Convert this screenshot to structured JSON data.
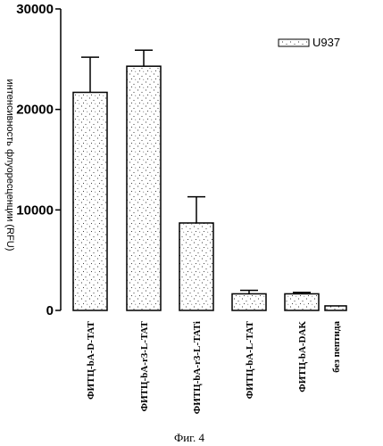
{
  "chart_data": {
    "type": "bar",
    "categories": [
      "ФИТЦ-bA-D-TAT",
      "ФИТЦ-bA-r3-L-TAT",
      "ФИТЦ-bA-r3-L-TATi",
      "ФИТЦ-bA-L-TAT",
      "ФИТЦ-bA-DAK",
      "без пептида"
    ],
    "series": [
      {
        "name": "U937",
        "values": [
          21700,
          24300,
          8700,
          1650,
          1650,
          450
        ],
        "errors": [
          3500,
          1600,
          2600,
          350,
          150,
          0
        ]
      }
    ],
    "yticks": [
      "0",
      "10000",
      "20000",
      "30000"
    ],
    "ylim": [
      0,
      30000
    ],
    "ylabel": "интенсивность флуоресценции (RFU)",
    "xlabel": "",
    "legend_position": "top-right",
    "bar_fill": "#ffffff",
    "stipple_color": "#000000"
  },
  "caption": "Фиг. 4"
}
